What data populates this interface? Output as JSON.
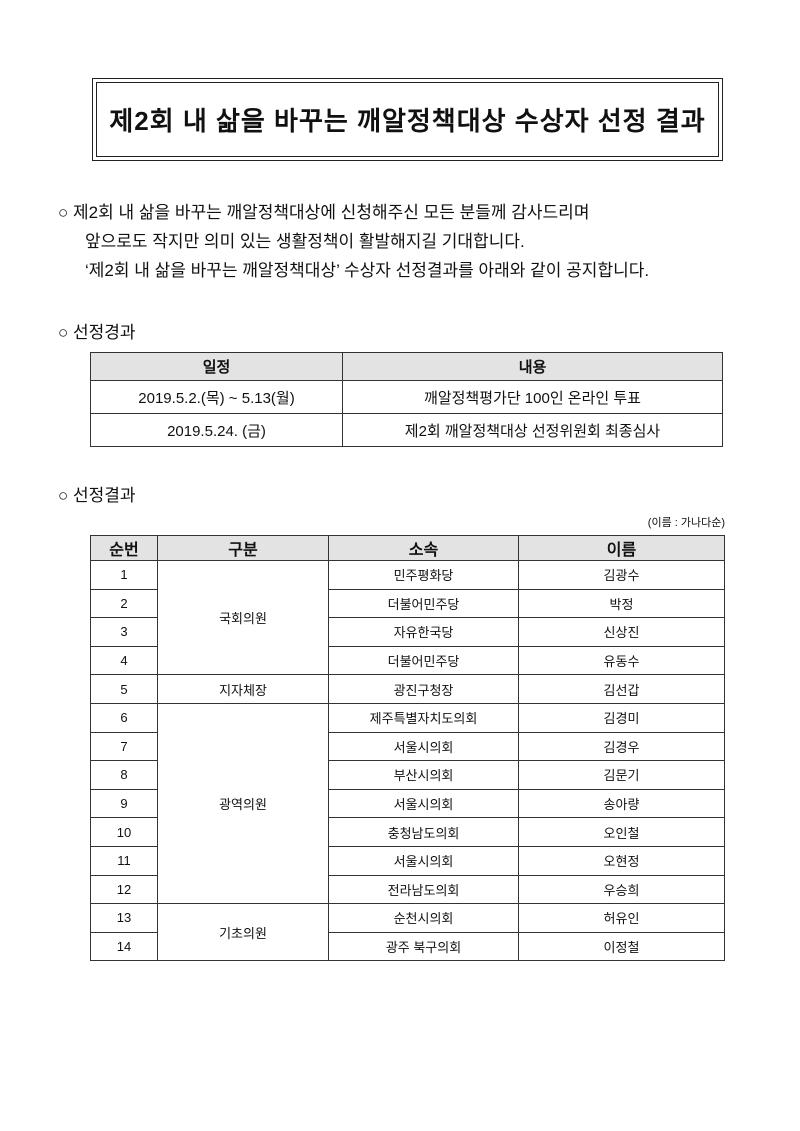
{
  "title": "제2회 내 삶을 바꾸는 깨알정책대상 수상자 선정 결과",
  "intro": {
    "bullet": "○",
    "lines": [
      "제2회 내 삶을 바꾸는 깨알정책대상에 신청해주신 모든 분들께 감사드리며",
      "앞으로도 작지만 의미 있는 생활정책이 활발해지길 기대합니다.",
      "‘제2회 내 삶을 바꾸는 깨알정책대상’ 수상자 선정결과를 아래와 같이 공지합니다."
    ]
  },
  "process": {
    "heading": "○ 선정경과",
    "headers": [
      "일정",
      "내용"
    ],
    "rows": [
      [
        "2019.5.2.(목) ~ 5.13(월)",
        "깨알정책평가단 100인 온라인 투표"
      ],
      [
        "2019.5.24. (금)",
        "제2회 깨알정책대상 선정위원회 최종심사"
      ]
    ]
  },
  "results": {
    "heading": "○ 선정결과",
    "note": "(이름 : 가나다순)",
    "headers": [
      "순번",
      "구분",
      "소속",
      "이름"
    ],
    "groups": [
      "국회의원",
      "지자체장",
      "광역의원",
      "기초의원"
    ],
    "rows": [
      [
        "1",
        "민주평화당",
        "김광수"
      ],
      [
        "2",
        "더불어민주당",
        "박정"
      ],
      [
        "3",
        "자유한국당",
        "신상진"
      ],
      [
        "4",
        "더불어민주당",
        "유동수"
      ],
      [
        "5",
        "광진구청장",
        "김선갑"
      ],
      [
        "6",
        "제주특별자치도의회",
        "김경미"
      ],
      [
        "7",
        "서울시의회",
        "김경우"
      ],
      [
        "8",
        "부산시의회",
        "김문기"
      ],
      [
        "9",
        "서울시의회",
        "송아량"
      ],
      [
        "10",
        "충청남도의회",
        "오인철"
      ],
      [
        "11",
        "서울시의회",
        "오현정"
      ],
      [
        "12",
        "전라남도의회",
        "우승희"
      ],
      [
        "13",
        "순천시의회",
        "허유인"
      ],
      [
        "14",
        "광주 북구의회",
        "이정철"
      ]
    ]
  }
}
